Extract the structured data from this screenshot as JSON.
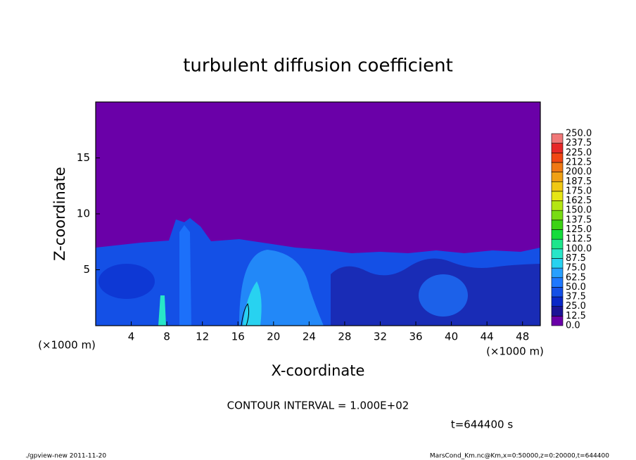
{
  "chart_data": {
    "type": "contour",
    "title": "turbulent diffusion coefficient",
    "xlabel": "X-coordinate",
    "ylabel": "Z-coordinate",
    "x_unit": "(×1000 m)",
    "y_unit": "(×1000 m)",
    "xlim": [
      0,
      50
    ],
    "xticks": [
      4,
      8,
      12,
      16,
      20,
      24,
      28,
      32,
      36,
      40,
      44,
      48
    ],
    "ylim": [
      0,
      20
    ],
    "yticks": [
      5,
      10,
      15
    ],
    "levels": [
      {
        "value": 0,
        "label": "0.0"
      },
      12.5,
      {
        "value": 25,
        "label": "25.0"
      },
      37.5,
      {
        "value": 50,
        "label": "50.0"
      },
      62.5,
      {
        "value": 75,
        "label": "75.0"
      },
      87.5,
      {
        "value": 100,
        "label": "100.0"
      },
      112.5,
      {
        "value": 125,
        "label": "125.0"
      },
      137.5,
      {
        "value": 150,
        "label": "150.0"
      },
      162.5,
      {
        "value": 175,
        "label": "175.0"
      },
      187.5,
      {
        "value": 200,
        "label": "200.0"
      },
      212.5,
      {
        "value": 225,
        "label": "225.0"
      },
      237.5,
      {
        "value": 250,
        "label": "250.0"
      }
    ],
    "colors": [
      "#6a00a8",
      "#1c1496",
      "#0a28c8",
      "#1450e6",
      "#1e78ff",
      "#28a0ff",
      "#28d2f0",
      "#28e6c8",
      "#1ee68c",
      "#14dc3c",
      "#3cd214",
      "#78dc14",
      "#b4e614",
      "#e6e614",
      "#f0c814",
      "#f0a014",
      "#f07814",
      "#f04614",
      "#e62828",
      "#f07878"
    ],
    "annotation": "CONTOUR INTERVAL = 1.000E+02",
    "time_label": "t=644400 s",
    "footer_left": "./gpview-new  2011-11-20",
    "footer_right": "MarsCond_Km.nc@Km,x=0:50000,z=0:20000,t=644400"
  }
}
